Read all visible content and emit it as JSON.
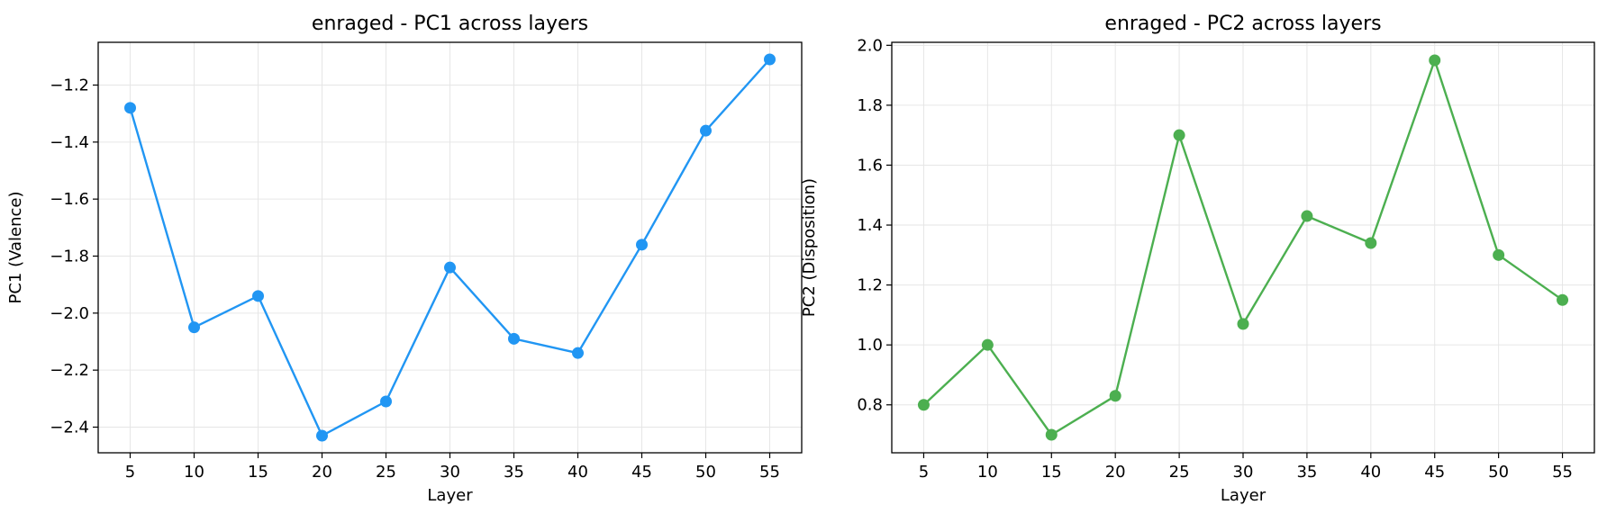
{
  "chart_data": [
    {
      "type": "line",
      "title": "enraged - PC1 across layers",
      "xlabel": "Layer",
      "ylabel": "PC1 (Valence)",
      "x": [
        5,
        10,
        15,
        20,
        25,
        30,
        35,
        40,
        45,
        50,
        55
      ],
      "series": [
        {
          "values": [
            -1.28,
            -2.05,
            -1.94,
            -2.43,
            -2.31,
            -1.84,
            -2.09,
            -2.14,
            -1.76,
            -1.36,
            -1.11
          ],
          "color": "#2196f3"
        }
      ],
      "xticks": [
        5,
        10,
        15,
        20,
        25,
        30,
        35,
        40,
        45,
        50,
        55
      ],
      "yticks": [
        -2.4,
        -2.2,
        -2.0,
        -1.8,
        -1.6,
        -1.4,
        -1.2
      ],
      "ytick_labels": [
        "−2.4",
        "−2.2",
        "−2.0",
        "−1.8",
        "−1.6",
        "−1.4",
        "−1.2"
      ],
      "xlim": [
        2.5,
        57.5
      ],
      "ylim": [
        -2.49,
        -1.05
      ],
      "grid": true,
      "marker": "circle"
    },
    {
      "type": "line",
      "title": "enraged - PC2 across layers",
      "xlabel": "Layer",
      "ylabel": "PC2 (Disposition)",
      "x": [
        5,
        10,
        15,
        20,
        25,
        30,
        35,
        40,
        45,
        50,
        55
      ],
      "series": [
        {
          "values": [
            0.8,
            1.0,
            0.7,
            0.83,
            1.7,
            1.07,
            1.43,
            1.34,
            1.95,
            1.3,
            1.15
          ],
          "color": "#4caf50"
        }
      ],
      "xticks": [
        5,
        10,
        15,
        20,
        25,
        30,
        35,
        40,
        45,
        50,
        55
      ],
      "yticks": [
        0.8,
        1.0,
        1.2,
        1.4,
        1.6,
        1.8,
        2.0
      ],
      "ytick_labels": [
        "0.8",
        "1.0",
        "1.2",
        "1.4",
        "1.6",
        "1.8",
        "2.0"
      ],
      "xlim": [
        2.5,
        57.5
      ],
      "ylim": [
        0.64,
        2.01
      ],
      "grid": true,
      "marker": "circle"
    }
  ]
}
